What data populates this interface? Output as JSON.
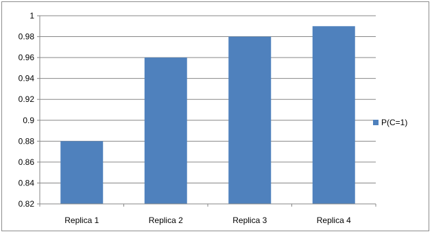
{
  "chart_data": {
    "type": "bar",
    "categories": [
      "Replica 1",
      "Replica 2",
      "Replica 3",
      "Replica 4"
    ],
    "series": [
      {
        "name": "P(C=1)",
        "values": [
          0.88,
          0.96,
          0.98,
          0.99
        ],
        "color": "#4f81bd"
      }
    ],
    "title": "",
    "xlabel": "",
    "ylabel": "",
    "ylim": [
      0.82,
      1
    ],
    "yticks": [
      0.82,
      0.84,
      0.86,
      0.88,
      0.9,
      0.92,
      0.94,
      0.96,
      0.98,
      1
    ],
    "ytick_labels": [
      "0.82",
      "0.84",
      "0.86",
      "0.88",
      "0.9",
      "0.92",
      "0.94",
      "0.96",
      "0.98",
      "1"
    ],
    "grid": true,
    "legend_position": "right"
  }
}
